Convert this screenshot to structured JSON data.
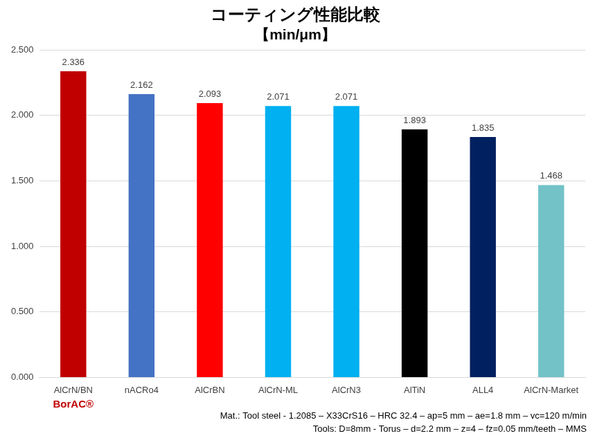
{
  "chart_data": {
    "type": "bar",
    "title": "コーティング性能比較",
    "subtitle": "【min/μm】",
    "categories": [
      "AlCrN/BN",
      "nACRo4",
      "AlCrBN",
      "AlCrN-ML",
      "AlCrN3",
      "AlTiN",
      "ALL4",
      "AlCrN-Market"
    ],
    "values": [
      2.336,
      2.162,
      2.093,
      2.071,
      2.071,
      1.893,
      1.835,
      1.468
    ],
    "colors": [
      "#c00000",
      "#4472c4",
      "#ff0000",
      "#00b0f0",
      "#00b0f0",
      "#000000",
      "#002060",
      "#72c2c8"
    ],
    "ylim": [
      0,
      2.5
    ],
    "yticks": [
      {
        "value": 0,
        "label": "0.000"
      },
      {
        "value": 0.5,
        "label": "0.500"
      },
      {
        "value": 1,
        "label": "1.000"
      },
      {
        "value": 1.5,
        "label": "1.500"
      },
      {
        "value": 2,
        "label": "2.000"
      },
      {
        "value": 2.5,
        "label": "2.500"
      }
    ],
    "grid": true,
    "data_labels": true,
    "annotations": [
      "BorAC®",
      "Mat.: Tool steel - 1.2085 – X33CrS16 – HRC 32.4 – ap=5 mm – ae=1.8 mm – vc=120 m/min",
      "Tools: D=8mm - Torus – d=2.2 mm – z=4 – fz=0.05 mm/teeth – MMS"
    ]
  }
}
